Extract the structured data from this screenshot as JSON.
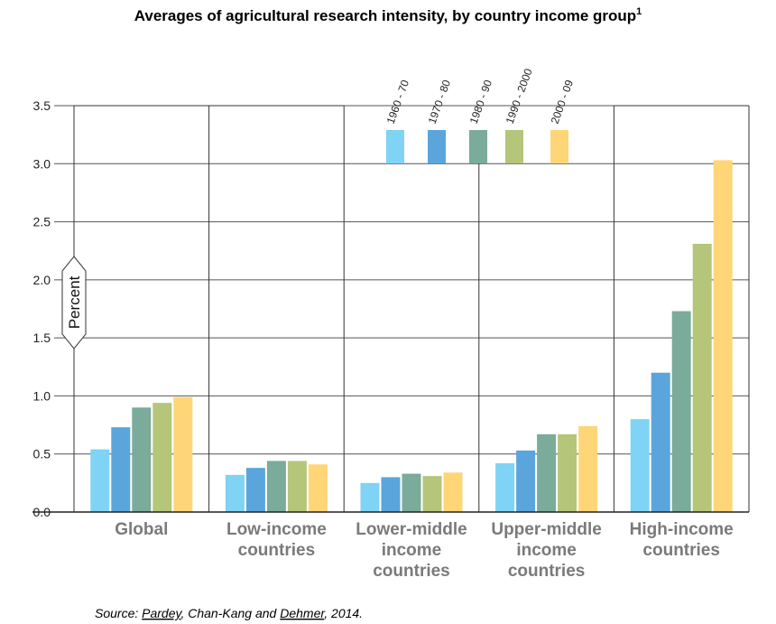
{
  "chart_data": {
    "type": "bar",
    "title": "Averages of agricultural research intensity, by country income group",
    "title_superscript": "1",
    "ylabel": "Percent",
    "ylim": [
      0,
      3.5
    ],
    "yticks": [
      "0.0",
      "0.5",
      "1.0",
      "1.5",
      "2.0",
      "2.5",
      "3.0",
      "3.5"
    ],
    "grid": true,
    "legend_placement": "top-center",
    "categories": [
      [
        "Global"
      ],
      [
        "Low-income",
        "countries"
      ],
      [
        "Lower-middle",
        "income",
        "countries"
      ],
      [
        "Upper-middle",
        "income",
        "countries"
      ],
      [
        "High-income",
        "countries"
      ]
    ],
    "series": [
      {
        "name": "1960 - 70",
        "color": "#7fd3f5",
        "values": [
          0.54,
          0.32,
          0.25,
          0.42,
          0.8
        ]
      },
      {
        "name": "1970 - 80",
        "color": "#5aa6dc",
        "values": [
          0.73,
          0.38,
          0.3,
          0.53,
          1.2
        ]
      },
      {
        "name": "1980 - 90",
        "color": "#7aab9b",
        "values": [
          0.9,
          0.44,
          0.33,
          0.67,
          1.73
        ]
      },
      {
        "name": "1990 - 2000",
        "color": "#b5c57a",
        "values": [
          0.94,
          0.44,
          0.31,
          0.67,
          2.31
        ]
      },
      {
        "name": "2000 - 09",
        "color": "#fed678",
        "values": [
          0.99,
          0.41,
          0.34,
          0.74,
          3.03
        ]
      }
    ]
  },
  "source": {
    "prefix": "Source: ",
    "authors": "Pardey",
    "middle": ", Chan-Kang and ",
    "author2": "Dehmer",
    "suffix": ", 2014."
  }
}
